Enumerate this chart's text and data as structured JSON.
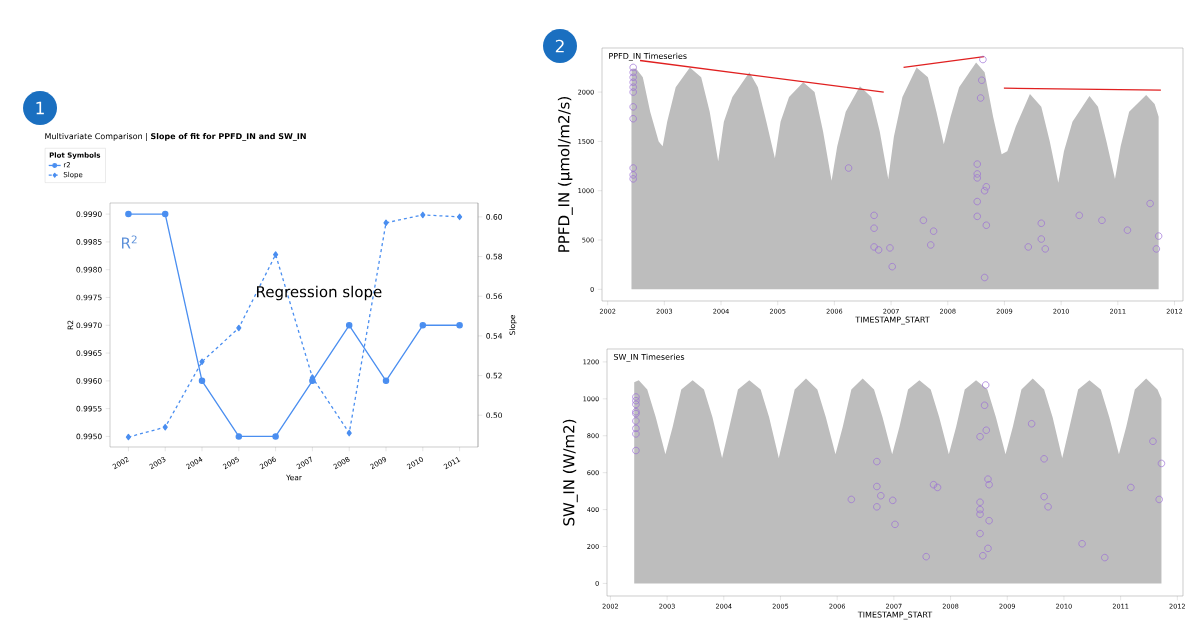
{
  "chart_data": [
    {
      "type": "line",
      "title": "Multivariate Comparison | **Slope of fit for PPFD_IN and SW_IN**",
      "xlabel": "Year",
      "ylabel": "R2",
      "y2label": "Slope",
      "legend_title": "Plot Symbols",
      "legend": "top left",
      "categories": [
        "2002",
        "2003",
        "2004",
        "2005",
        "2006",
        "2007",
        "2008",
        "2009",
        "2010",
        "2011"
      ],
      "series": [
        {
          "name": "r2",
          "color": "#4a8ef0",
          "marker": "circle",
          "line_style": "solid",
          "values": [
            0.999,
            0.999,
            0.996,
            0.995,
            0.995,
            0.996,
            0.997,
            0.996,
            0.997,
            0.997
          ]
        },
        {
          "name": "Slope",
          "color": "#4a8ef0",
          "marker": "diamond",
          "line_style": "dashed",
          "axis": "y2",
          "values": [
            0.489,
            0.494,
            0.527,
            0.544,
            0.581,
            0.519,
            0.491,
            0.597,
            0.601,
            0.6
          ]
        }
      ],
      "ylim": [
        0.99481,
        0.9992
      ],
      "yticks": [
        {
          "value": 0.995,
          "label": "0.9950"
        },
        {
          "value": 0.9955,
          "label": "0.9955"
        },
        {
          "value": 0.996,
          "label": "0.9960"
        },
        {
          "value": 0.9965,
          "label": "0.9965"
        },
        {
          "value": 0.997,
          "label": "0.9970"
        },
        {
          "value": 0.9975,
          "label": "0.9975"
        },
        {
          "value": 0.998,
          "label": "0.9980"
        },
        {
          "value": 0.9985,
          "label": "0.9985"
        },
        {
          "value": 0.999,
          "label": "0.9990"
        }
      ],
      "y2lim": [
        0.484,
        0.607
      ],
      "y2ticks": [
        {
          "value": 0.5,
          "label": "0.50"
        },
        {
          "value": 0.52,
          "label": "0.52"
        },
        {
          "value": 0.54,
          "label": "0.54"
        },
        {
          "value": 0.56,
          "label": "0.56"
        },
        {
          "value": 0.58,
          "label": "0.58"
        },
        {
          "value": 0.6,
          "label": "0.60"
        }
      ],
      "annotations": [
        "1",
        "R$^{2}$",
        "Regression slope"
      ]
    },
    {
      "type": "scatter",
      "title": "PPFD_IN Timeseries",
      "xlabel": "TIMESTAMP_START",
      "ylabel": "PPFD_IN  (µmol/m2/s)",
      "series": [
        {
          "type": "area",
          "color": "#bdbdbd",
          "x": [
            2002.42,
            2002.5,
            2002.62,
            2002.75,
            2002.9,
            2002.97,
            2003.05,
            2003.2,
            2003.45,
            2003.65,
            2003.8,
            2003.95,
            2004.05,
            2004.2,
            2004.5,
            2004.65,
            2004.8,
            2004.95,
            2005.05,
            2005.2,
            2005.45,
            2005.65,
            2005.8,
            2005.95,
            2006.05,
            2006.2,
            2006.45,
            2006.65,
            2006.8,
            2006.95,
            2007.05,
            2007.2,
            2007.45,
            2007.65,
            2007.8,
            2007.93,
            2008.05,
            2008.2,
            2008.5,
            2008.65,
            2008.8,
            2008.95,
            2009.05,
            2009.2,
            2009.45,
            2009.65,
            2009.8,
            2009.95,
            2010.05,
            2010.2,
            2010.5,
            2010.65,
            2010.8,
            2010.95,
            2011.05,
            2011.2,
            2011.5,
            2011.65,
            2011.72
          ],
          "values": [
            2230,
            2240,
            2150,
            1800,
            1500,
            1450,
            1700,
            2050,
            2250,
            2150,
            1800,
            1300,
            1700,
            1950,
            2200,
            2050,
            1700,
            1330,
            1700,
            1950,
            2100,
            2000,
            1600,
            1100,
            1450,
            1800,
            2060,
            1950,
            1600,
            1120,
            1550,
            1950,
            2250,
            2150,
            1800,
            1470,
            1750,
            2050,
            2300,
            2200,
            1750,
            1370,
            1400,
            1650,
            1980,
            1850,
            1500,
            1080,
            1400,
            1700,
            1960,
            1850,
            1500,
            1120,
            1450,
            1800,
            1970,
            1880,
            1750
          ]
        },
        {
          "type": "scatter",
          "color": "#9b6fd6",
          "marker": "circle",
          "x": [
            2002.45,
            2002.45,
            2002.45,
            2002.45,
            2002.45,
            2002.45,
            2002.45,
            2002.45,
            2002.45,
            2002.45,
            2002.45,
            2006.25,
            2006.7,
            2006.7,
            2006.7,
            2006.78,
            2006.98,
            2007.02,
            2007.57,
            2007.7,
            2007.75,
            2008.52,
            2008.52,
            2008.52,
            2008.52,
            2008.52,
            2008.58,
            2008.6,
            2008.62,
            2008.65,
            2008.65,
            2008.68,
            2008.68,
            2009.42,
            2009.65,
            2009.65,
            2009.72,
            2010.32,
            2010.72,
            2011.17,
            2011.57,
            2011.68,
            2011.72
          ],
          "values": [
            2250,
            2200,
            2150,
            2100,
            2050,
            2000,
            1850,
            1730,
            1230,
            1160,
            1120,
            1230,
            750,
            620,
            430,
            400,
            420,
            230,
            700,
            450,
            590,
            1270,
            1170,
            1130,
            890,
            740,
            1940,
            2120,
            2330,
            1000,
            120,
            1040,
            650,
            430,
            670,
            510,
            410,
            750,
            700,
            600,
            870,
            410,
            540
          ]
        },
        {
          "type": "line",
          "color": "#e02020",
          "x": [
            2002.57,
            2006.87
          ],
          "values": [
            2320,
            2000
          ]
        },
        {
          "type": "line",
          "color": "#e02020",
          "x": [
            2007.22,
            2008.64
          ],
          "values": [
            2250,
            2360
          ]
        },
        {
          "type": "line",
          "color": "#e02020",
          "x": [
            2008.99,
            2011.76
          ],
          "values": [
            2040,
            2020
          ]
        }
      ],
      "xlim": [
        2001.9,
        2012.15
      ],
      "xticks": [
        2002,
        2003,
        2004,
        2005,
        2006,
        2007,
        2008,
        2009,
        2010,
        2011,
        2012
      ],
      "ylim": [
        -118,
        2447
      ],
      "yticks": [
        0,
        500,
        1000,
        1500,
        2000
      ],
      "annotations": [
        "2"
      ]
    },
    {
      "type": "scatter",
      "title": "SW_IN Timeseries",
      "xlabel": "TIMESTAMP_START",
      "ylabel": "SW_IN (W/m2)",
      "series": [
        {
          "type": "area",
          "color": "#bdbdbd",
          "x": [
            2002.42,
            2002.5,
            2002.65,
            2002.8,
            2002.97,
            2003.1,
            2003.25,
            2003.45,
            2003.65,
            2003.8,
            2003.97,
            2004.1,
            2004.25,
            2004.45,
            2004.65,
            2004.8,
            2004.97,
            2005.1,
            2005.25,
            2005.45,
            2005.65,
            2005.8,
            2005.97,
            2006.1,
            2006.25,
            2006.45,
            2006.65,
            2006.8,
            2006.97,
            2007.1,
            2007.25,
            2007.45,
            2007.65,
            2007.8,
            2007.97,
            2008.1,
            2008.25,
            2008.45,
            2008.65,
            2008.8,
            2008.97,
            2009.1,
            2009.25,
            2009.45,
            2009.65,
            2009.8,
            2009.97,
            2010.1,
            2010.25,
            2010.45,
            2010.65,
            2010.8,
            2010.97,
            2011.1,
            2011.25,
            2011.45,
            2011.65,
            2011.72
          ],
          "values": [
            1090,
            1100,
            1050,
            900,
            700,
            850,
            1050,
            1100,
            1050,
            900,
            680,
            850,
            1050,
            1100,
            1050,
            900,
            680,
            850,
            1050,
            1110,
            1050,
            900,
            700,
            850,
            1050,
            1110,
            1050,
            900,
            700,
            850,
            1050,
            1100,
            1050,
            900,
            700,
            850,
            1050,
            1100,
            1050,
            900,
            700,
            850,
            1050,
            1110,
            1050,
            900,
            680,
            850,
            1050,
            1100,
            1050,
            900,
            700,
            850,
            1050,
            1110,
            1050,
            1000
          ]
        },
        {
          "type": "scatter",
          "color": "#9b6fd6",
          "marker": "circle",
          "x": [
            2002.45,
            2002.45,
            2002.45,
            2002.45,
            2002.45,
            2002.45,
            2002.45,
            2002.45,
            2002.45,
            2006.25,
            2006.7,
            2006.7,
            2006.7,
            2006.77,
            2006.98,
            2007.02,
            2007.57,
            2007.7,
            2007.77,
            2008.52,
            2008.52,
            2008.52,
            2008.52,
            2008.52,
            2008.57,
            2008.6,
            2008.62,
            2008.63,
            2008.66,
            2008.66,
            2008.68,
            2008.68,
            2009.43,
            2009.65,
            2009.65,
            2009.72,
            2010.32,
            2010.72,
            2011.18,
            2011.57,
            2011.68,
            2011.72
          ],
          "values": [
            1010,
            990,
            970,
            930,
            920,
            880,
            840,
            810,
            720,
            455,
            660,
            525,
            415,
            475,
            450,
            320,
            145,
            535,
            520,
            795,
            440,
            400,
            375,
            270,
            150,
            965,
            1075,
            830,
            565,
            190,
            535,
            340,
            865,
            675,
            470,
            415,
            215,
            140,
            520,
            770,
            455,
            650
          ]
        }
      ],
      "xlim": [
        2001.94,
        2012.1
      ],
      "xticks": [
        2002,
        2003,
        2004,
        2005,
        2006,
        2007,
        2008,
        2009,
        2010,
        2011,
        2012
      ],
      "ylim": [
        -68,
        1270
      ],
      "yticks": [
        0,
        200,
        400,
        600,
        800,
        1000,
        1200
      ]
    }
  ]
}
